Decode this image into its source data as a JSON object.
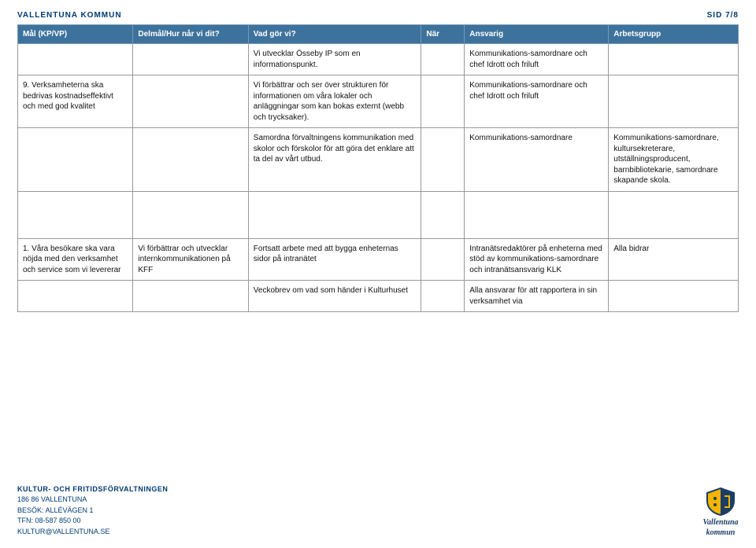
{
  "header": {
    "org": "VALLENTUNA KOMMUN",
    "page": "SID 7/8"
  },
  "columns": {
    "c1": "Mål (KP/VP)",
    "c2": "Delmål/Hur når vi dit?",
    "c3": "Vad gör vi?",
    "c4": "När",
    "c5": "Ansvarig",
    "c6": "Arbetsgrupp"
  },
  "widths": {
    "c1": "16%",
    "c2": "16%",
    "c3": "24%",
    "c4": "6%",
    "c5": "20%",
    "c6": "18%"
  },
  "colors": {
    "header_bg": "#3d729d",
    "header_text": "#ffffff",
    "border": "#999999",
    "brand": "#003b72"
  },
  "rows": [
    {
      "c1": "",
      "c2": "",
      "c3": "Vi utvecklar Össeby IP som en informationspunkt.",
      "c4": "",
      "c5": "Kommunikations-samordnare och chef Idrott och friluft",
      "c6": ""
    },
    {
      "c1": "9. Verksamheterna ska bedrivas kostnadseffektivt och med god kvalitet",
      "c2": "",
      "c3": "Vi förbättrar och ser över strukturen för informationen om våra lokaler och anläggningar som kan bokas externt (webb och trycksaker).",
      "c4": "",
      "c5": "Kommunikations-samordnare och chef Idrott och friluft",
      "c6": ""
    },
    {
      "c1": "",
      "c2": "",
      "c3": "Samordna förvaltningens kommunikation med skolor och förskolor för att göra det enklare att ta del av vårt utbud.",
      "c4": "",
      "c5": "Kommunikations-samordnare",
      "c6": "Kommunikations-samordnare, kultursekreterare, utställningsproducent, barnbibliotekarie, samordnare skapande skola."
    },
    {
      "gap": true
    },
    {
      "c1": "1. Våra besökare ska vara nöjda med den verksamhet och service som vi levererar",
      "c2": "Vi förbättrar och utvecklar internkommunikationen på KFF",
      "c3": "Fortsatt arbete med att bygga enheternas sidor på intranätet",
      "c4": "",
      "c5": "Intranätsredaktörer på enheterna med stöd av kommunikations-samordnare och intranätsansvarig KLK",
      "c6": "Alla bidrar"
    },
    {
      "c1": "",
      "c2": "",
      "c3": "Veckobrev om vad som händer i Kulturhuset",
      "c4": "",
      "c5": "Alla ansvarar för att rapportera in sin verksamhet via",
      "c6": ""
    }
  ],
  "footer": {
    "dept": "KULTUR- OCH FRITIDSFÖRVALTNINGEN",
    "line1": "186 86 VALLENTUNA",
    "line2": "BESÖK: ALLÉVÄGEN 1",
    "line3": "TFN: 08-587 850 00",
    "line4": "KULTUR@VALLENTUNA.SE",
    "logo_top": "Vallentuna",
    "logo_bottom": "kommun"
  }
}
